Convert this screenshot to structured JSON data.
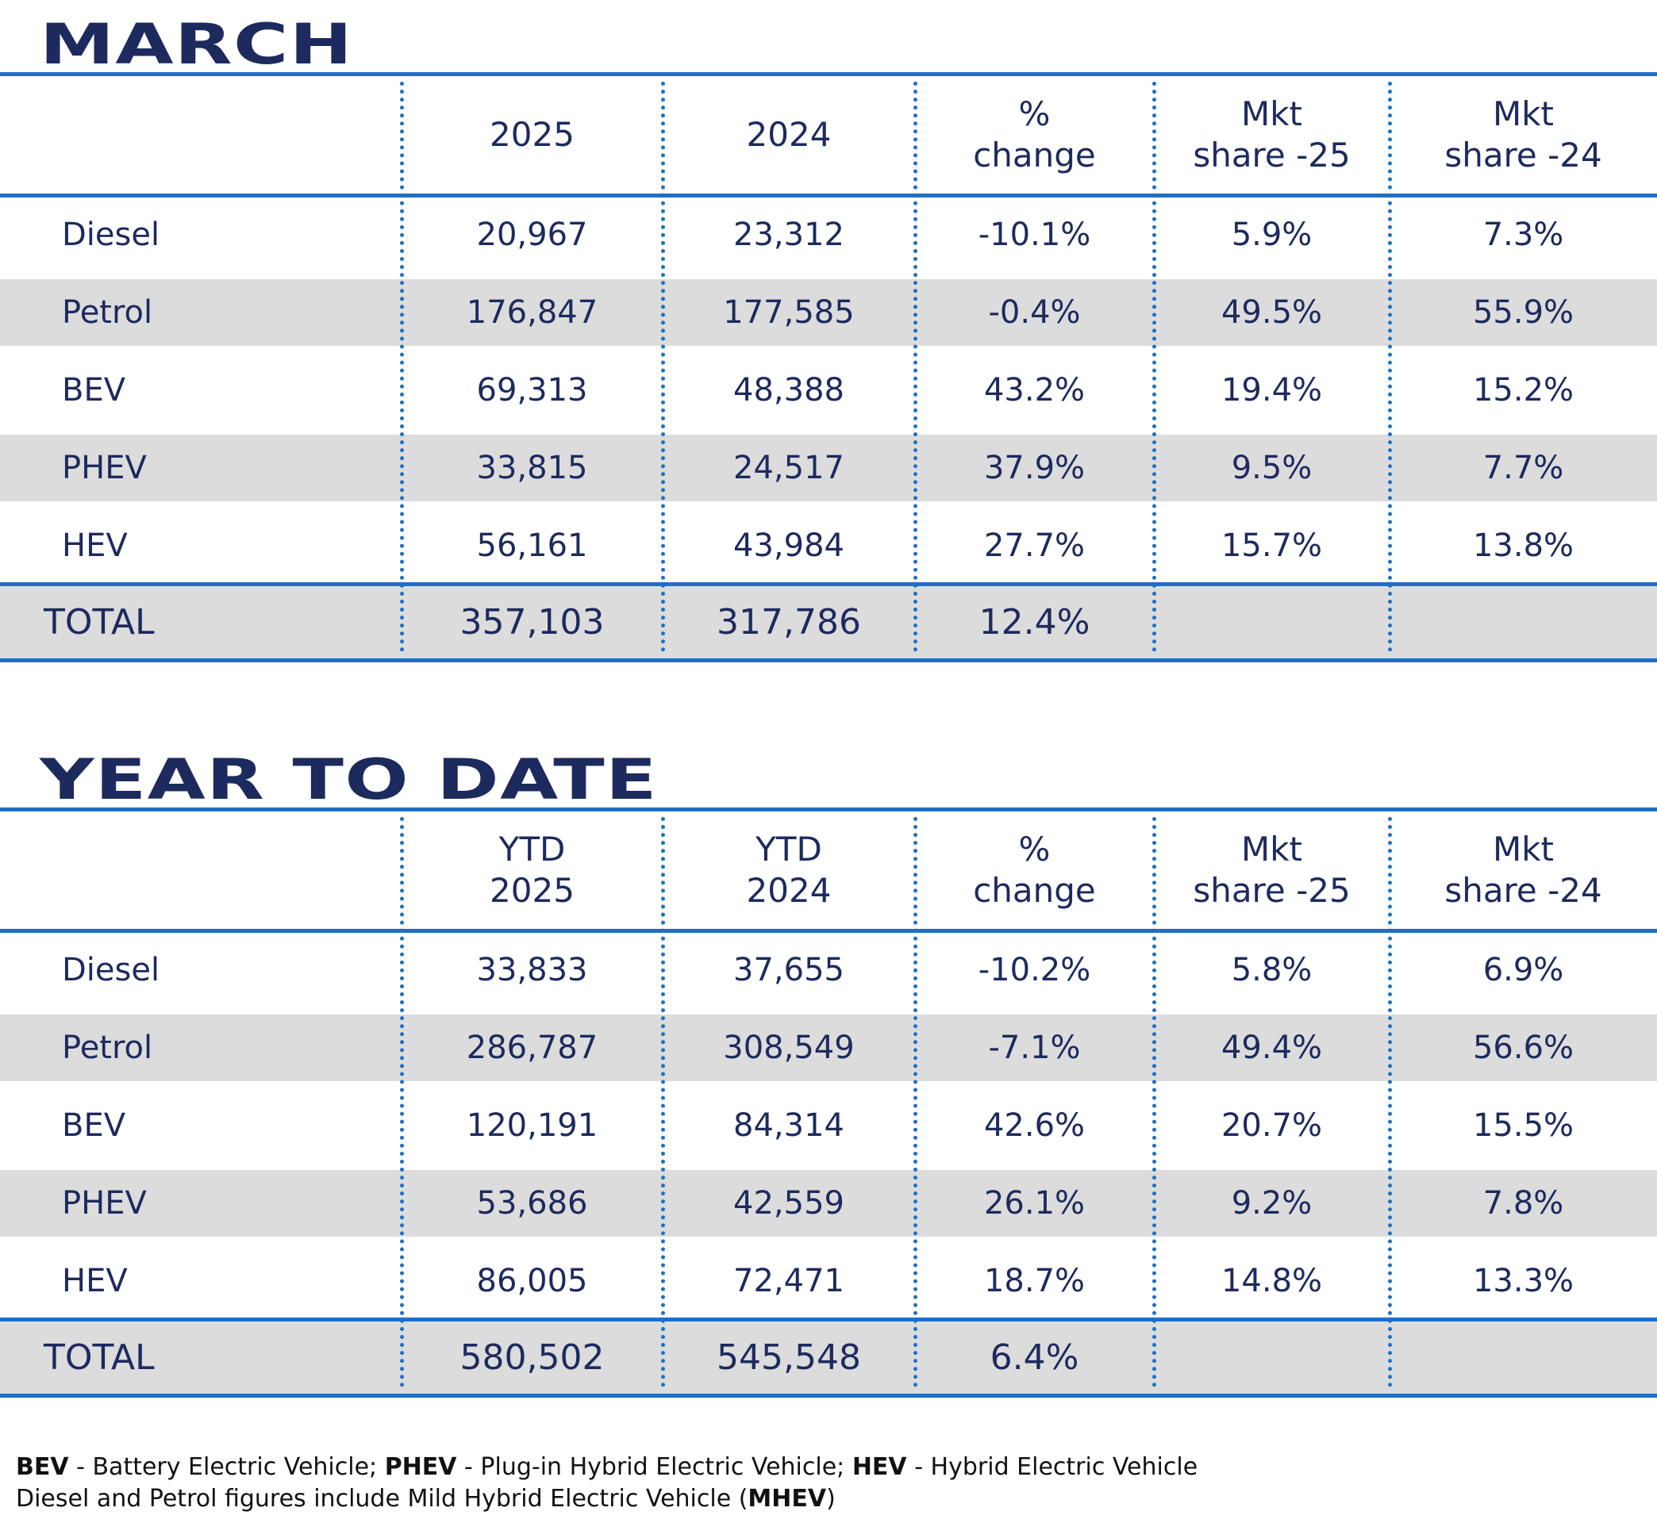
{
  "sections": [
    {
      "title": "MARCH",
      "header": [
        [
          "2025"
        ],
        [
          "2024"
        ],
        [
          "%",
          "change"
        ],
        [
          "Mkt",
          "share -25"
        ],
        [
          "Mkt",
          "share -24"
        ]
      ],
      "rows": [
        [
          "Diesel",
          "20,967",
          "23,312",
          "-10.1%",
          "5.9%",
          "7.3%"
        ],
        [
          "Petrol",
          "176,847",
          "177,585",
          "-0.4%",
          "49.5%",
          "55.9%"
        ],
        [
          "BEV",
          "69,313",
          "48,388",
          "43.2%",
          "19.4%",
          "15.2%"
        ],
        [
          "PHEV",
          "33,815",
          "24,517",
          "37.9%",
          "9.5%",
          "7.7%"
        ],
        [
          "HEV",
          "56,161",
          "43,984",
          "27.7%",
          "15.7%",
          "13.8%"
        ]
      ],
      "total": [
        "TOTAL",
        "357,103",
        "317,786",
        "12.4%"
      ]
    },
    {
      "title": "YEAR TO DATE",
      "header": [
        [
          "YTD",
          "2025"
        ],
        [
          "YTD",
          "2024"
        ],
        [
          "%",
          "change"
        ],
        [
          "Mkt",
          "share -25"
        ],
        [
          "Mkt",
          "share -24"
        ]
      ],
      "rows": [
        [
          "Diesel",
          "33,833",
          "37,655",
          "-10.2%",
          "5.8%",
          "6.9%"
        ],
        [
          "Petrol",
          "286,787",
          "308,549",
          "-7.1%",
          "49.4%",
          "56.6%"
        ],
        [
          "BEV",
          "120,191",
          "84,314",
          "42.6%",
          "20.7%",
          "15.5%"
        ],
        [
          "PHEV",
          "53,686",
          "42,559",
          "26.1%",
          "9.2%",
          "7.8%"
        ],
        [
          "HEV",
          "86,005",
          "72,471",
          "18.7%",
          "14.8%",
          "13.3%"
        ]
      ],
      "total": [
        "TOTAL",
        "580,502",
        "545,548",
        "6.4%"
      ]
    }
  ],
  "footnote": {
    "lines": [
      [
        {
          "text": "BEV",
          "bold": true
        },
        {
          "text": " - Battery Electric Vehicle; ",
          "bold": false
        },
        {
          "text": "PHEV",
          "bold": true
        },
        {
          "text": " - Plug-in Hybrid Electric Vehicle; ",
          "bold": false
        },
        {
          "text": "HEV",
          "bold": true
        },
        {
          "text": " - Hybrid Electric Vehicle",
          "bold": false
        }
      ],
      [
        {
          "text": "Diesel and Petrol figures include Mild Hybrid Electric Vehicle (",
          "bold": false
        },
        {
          "text": "MHEV",
          "bold": true
        },
        {
          "text": ")",
          "bold": false
        }
      ]
    ]
  }
}
